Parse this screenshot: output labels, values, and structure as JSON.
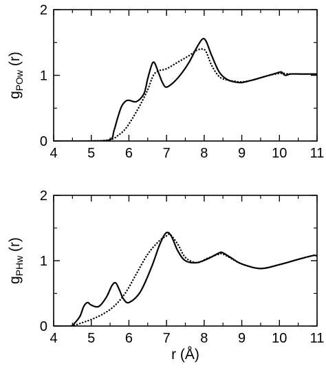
{
  "chart_data": [
    {
      "type": "line",
      "xlabel": "",
      "ylabel": {
        "main": "g",
        "subscript": "POw",
        "suffix": " (r)"
      },
      "xlim": [
        4,
        11
      ],
      "ylim": [
        0,
        2
      ],
      "xticks": [
        4,
        5,
        6,
        7,
        8,
        9,
        10,
        11
      ],
      "yticks": [
        0,
        1,
        2
      ],
      "xtick_labels": [
        "4",
        "5",
        "6",
        "7",
        "8",
        "9",
        "10",
        "11"
      ],
      "ytick_labels": [
        "0",
        "1",
        "2"
      ],
      "grid": false,
      "legend": false,
      "series": [
        {
          "style": "solid",
          "color": "#000000",
          "x": [
            4.0,
            5.0,
            5.5,
            5.6,
            5.7,
            5.8,
            5.9,
            6.0,
            6.2,
            6.4,
            6.5,
            6.6,
            6.65,
            6.7,
            6.8,
            6.9,
            7.0,
            7.2,
            7.4,
            7.6,
            7.8,
            7.95,
            8.05,
            8.2,
            8.4,
            8.6,
            8.8,
            9.0,
            9.3,
            9.6,
            9.9,
            10.05,
            10.15,
            10.3,
            10.6,
            11.0
          ],
          "y": [
            0.0,
            0.0,
            0.02,
            0.15,
            0.35,
            0.52,
            0.6,
            0.62,
            0.6,
            0.72,
            0.95,
            1.15,
            1.2,
            1.17,
            1.02,
            0.88,
            0.82,
            0.9,
            1.03,
            1.2,
            1.42,
            1.55,
            1.52,
            1.3,
            1.05,
            0.94,
            0.9,
            0.89,
            0.93,
            0.98,
            1.03,
            1.05,
            1.0,
            1.02,
            1.02,
            1.02
          ]
        },
        {
          "style": "dotted",
          "color": "#000000",
          "x": [
            4.0,
            5.0,
            5.5,
            5.7,
            5.9,
            6.1,
            6.3,
            6.5,
            6.65,
            6.8,
            7.0,
            7.3,
            7.6,
            7.8,
            7.95,
            8.05,
            8.2,
            8.4,
            8.6,
            8.8,
            9.0,
            9.3,
            9.6,
            9.9,
            10.1,
            10.3,
            11.0
          ],
          "y": [
            0.0,
            0.0,
            0.02,
            0.08,
            0.18,
            0.35,
            0.55,
            0.78,
            1.0,
            1.07,
            1.1,
            1.2,
            1.3,
            1.38,
            1.4,
            1.36,
            1.15,
            0.98,
            0.93,
            0.91,
            0.9,
            0.93,
            0.98,
            1.02,
            1.03,
            1.02,
            1.02
          ]
        }
      ]
    },
    {
      "type": "line",
      "xlabel": "r (Å)",
      "ylabel": {
        "main": "g",
        "subscript": "PHw",
        "suffix": " (r)"
      },
      "xlim": [
        4,
        11
      ],
      "ylim": [
        0,
        2
      ],
      "xticks": [
        4,
        5,
        6,
        7,
        8,
        9,
        10,
        11
      ],
      "yticks": [
        0,
        1,
        2
      ],
      "xtick_labels": [
        "4",
        "5",
        "6",
        "7",
        "8",
        "9",
        "10",
        "11"
      ],
      "ytick_labels": [
        "0",
        "1",
        "2"
      ],
      "grid": false,
      "legend": false,
      "series": [
        {
          "style": "solid",
          "color": "#000000",
          "x": [
            4.0,
            4.45,
            4.55,
            4.7,
            4.8,
            4.9,
            5.0,
            5.2,
            5.4,
            5.55,
            5.65,
            5.75,
            5.85,
            6.0,
            6.3,
            6.6,
            6.8,
            6.95,
            7.05,
            7.15,
            7.3,
            7.5,
            7.8,
            8.1,
            8.4,
            8.5,
            8.7,
            9.0,
            9.5,
            10.0,
            10.5,
            10.9,
            11.0
          ],
          "y": [
            0.0,
            0.0,
            0.04,
            0.15,
            0.3,
            0.36,
            0.32,
            0.3,
            0.44,
            0.62,
            0.66,
            0.55,
            0.42,
            0.36,
            0.52,
            0.9,
            1.22,
            1.4,
            1.43,
            1.35,
            1.15,
            1.0,
            0.97,
            1.03,
            1.12,
            1.12,
            1.05,
            0.95,
            0.88,
            0.94,
            1.02,
            1.08,
            1.07
          ]
        },
        {
          "style": "dotted",
          "color": "#000000",
          "x": [
            4.0,
            4.45,
            4.6,
            4.8,
            5.0,
            5.3,
            5.6,
            5.9,
            6.2,
            6.5,
            6.8,
            7.0,
            7.1,
            7.3,
            7.5,
            7.8,
            8.1,
            8.4,
            8.5,
            8.7,
            9.0,
            9.5,
            10.0,
            10.5,
            10.9,
            11.0
          ],
          "y": [
            0.0,
            0.0,
            0.02,
            0.06,
            0.1,
            0.18,
            0.3,
            0.5,
            0.8,
            1.1,
            1.3,
            1.38,
            1.4,
            1.25,
            1.05,
            0.97,
            1.04,
            1.1,
            1.1,
            1.04,
            0.95,
            0.88,
            0.94,
            1.02,
            1.08,
            1.07
          ]
        }
      ]
    }
  ]
}
